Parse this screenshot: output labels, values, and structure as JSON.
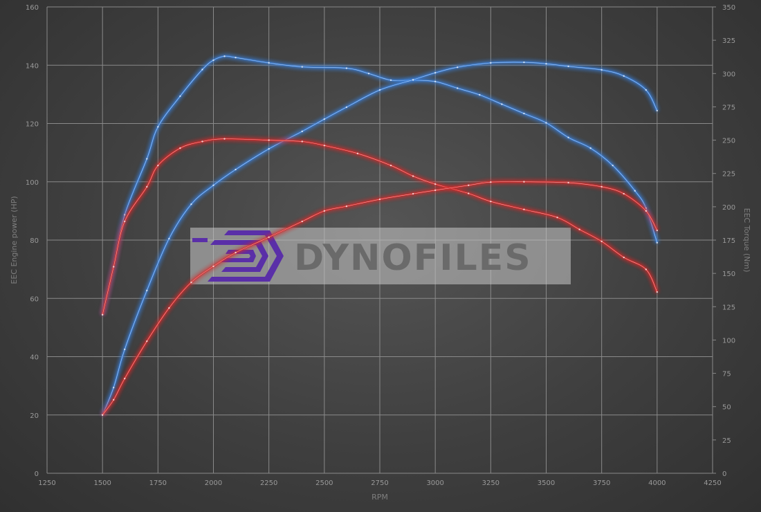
{
  "chart_data": {
    "type": "line",
    "xlabel": "RPM",
    "ylabel": "EEC Engine power (HP)",
    "y2label": "EEC Torque (Nm)",
    "xlim": [
      1250,
      4250
    ],
    "ylim": [
      0,
      160
    ],
    "y2lim": [
      0,
      350
    ],
    "xticks": [
      "1250",
      "1500",
      "1750",
      "2000",
      "2250",
      "2500",
      "2750",
      "3000",
      "3250",
      "3500",
      "3750",
      "4000",
      "4250"
    ],
    "yticks": [
      "0",
      "20",
      "40",
      "60",
      "80",
      "100",
      "120",
      "140",
      "160"
    ],
    "y2ticks": [
      "0",
      "25",
      "50",
      "75",
      "100",
      "125",
      "150",
      "175",
      "200",
      "225",
      "250",
      "275",
      "300",
      "325",
      "350"
    ],
    "grid": true,
    "watermark": "DYNOFILES",
    "series": [
      {
        "axis": "right",
        "color": "#3a7fd8",
        "x": [
          1500,
          1550,
          1600,
          1700,
          1750,
          1850,
          1950,
          2000,
          2050,
          2100,
          2250,
          2400,
          2600,
          2700,
          2800,
          2900,
          3000,
          3100,
          3200,
          3300,
          3400,
          3500,
          3600,
          3700,
          3800,
          3900,
          3950,
          4000
        ],
        "values": [
          119,
          155,
          194,
          236,
          260,
          283,
          303,
          310,
          313,
          312,
          308,
          305,
          304,
          300,
          295,
          295,
          294,
          289,
          284,
          277,
          270,
          263,
          252,
          244,
          231,
          212,
          199,
          173
        ]
      },
      {
        "axis": "left",
        "color": "#3a7fd8",
        "x": [
          1500,
          1550,
          1600,
          1700,
          1800,
          1900,
          2000,
          2100,
          2250,
          2400,
          2500,
          2600,
          2750,
          2900,
          3000,
          3100,
          3250,
          3400,
          3500,
          3600,
          3750,
          3850,
          3950,
          4000
        ],
        "values": [
          20,
          29.4,
          42.5,
          62.7,
          80.5,
          92.3,
          98.8,
          104.2,
          111.3,
          117.3,
          121.5,
          125.6,
          131.5,
          135,
          137.4,
          139.3,
          140.8,
          141,
          140.5,
          139.6,
          138.4,
          136.3,
          131.5,
          124.4
        ]
      },
      {
        "axis": "right",
        "color": "#d42a2a",
        "x": [
          1500,
          1550,
          1600,
          1700,
          1750,
          1850,
          1950,
          2050,
          2250,
          2400,
          2500,
          2650,
          2800,
          2900,
          3000,
          3150,
          3250,
          3400,
          3550,
          3650,
          3750,
          3850,
          3950,
          4000
        ],
        "values": [
          119,
          155,
          189,
          215,
          231,
          244,
          249,
          251,
          250,
          249,
          246,
          240,
          231,
          223,
          217,
          210,
          204,
          198,
          192,
          183,
          174,
          162,
          153,
          136
        ]
      },
      {
        "axis": "left",
        "color": "#d42a2a",
        "x": [
          1500,
          1550,
          1600,
          1700,
          1800,
          1900,
          2000,
          2100,
          2250,
          2400,
          2500,
          2600,
          2750,
          2900,
          3000,
          3150,
          3250,
          3400,
          3600,
          3750,
          3850,
          3950,
          4000
        ],
        "values": [
          20,
          25.2,
          32.5,
          45.3,
          56.7,
          65.5,
          71,
          75.7,
          81,
          86.4,
          90,
          91.6,
          94,
          95.9,
          97.1,
          98.8,
          99.9,
          100,
          99.7,
          98.3,
          95.9,
          90,
          83.3
        ]
      }
    ]
  }
}
